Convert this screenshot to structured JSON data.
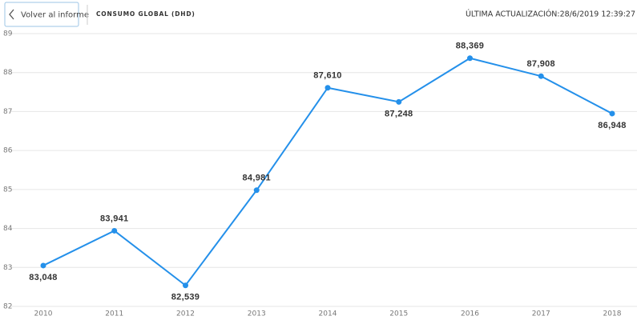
{
  "header": {
    "back_button": "Volver al informe",
    "title": "CONSUMO GLOBAL (DHD)",
    "last_update": "ÚLTIMA ACTUALIZACIÓN:28/6/2019 12:39:27"
  },
  "chart_data": {
    "type": "line",
    "categories": [
      "2010",
      "2011",
      "2012",
      "2013",
      "2014",
      "2015",
      "2016",
      "2017",
      "2018"
    ],
    "series": [
      {
        "color": "#2490ea",
        "values": [
          83.048,
          83.941,
          82.539,
          84.981,
          87.61,
          87.248,
          88.369,
          87.908,
          86.948
        ],
        "value_labels": [
          "83,048",
          "83,941",
          "82,539",
          "84,981",
          "87,610",
          "87,248",
          "88,369",
          "87,908",
          "86,948"
        ]
      }
    ],
    "ylim": [
      82,
      89
    ],
    "yticks": [
      82,
      83,
      84,
      85,
      86,
      87,
      88,
      89
    ],
    "grid": true
  }
}
